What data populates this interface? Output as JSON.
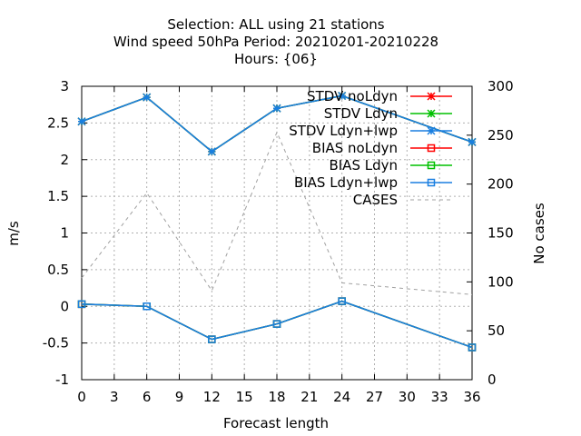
{
  "chart_data": {
    "type": "line",
    "title_lines": [
      "Selection: ALL using    21 stations",
      "Wind speed 50hPa   Period: 20210201-20210228",
      "Hours: {06}"
    ],
    "xlabel": "Forecast length",
    "ylabel": "m/s",
    "y2label": "No cases",
    "x": [
      0,
      6,
      12,
      18,
      24,
      36
    ],
    "xlim": [
      0,
      36
    ],
    "ylim": [
      -1,
      3
    ],
    "y2lim": [
      0,
      300
    ],
    "xticks": [
      0,
      3,
      6,
      9,
      12,
      15,
      18,
      21,
      24,
      27,
      30,
      33,
      36
    ],
    "yticks": [
      -1,
      -0.5,
      0,
      0.5,
      1,
      1.5,
      2,
      2.5,
      3
    ],
    "y2ticks": [
      0,
      50,
      100,
      150,
      200,
      250,
      300
    ],
    "grid": true,
    "legend_position": "top-right",
    "series": [
      {
        "name": "STDV noLdyn",
        "color": "#ff0000",
        "marker": "star",
        "axis": "y1",
        "values": [
          2.52,
          2.85,
          2.11,
          2.7,
          2.87,
          2.24
        ]
      },
      {
        "name": "STDV Ldyn",
        "color": "#00c000",
        "marker": "star",
        "axis": "y1",
        "values": [
          2.52,
          2.85,
          2.11,
          2.7,
          2.87,
          2.24
        ]
      },
      {
        "name": "STDV Ldyn+lwp",
        "color": "#1a7fe0",
        "marker": "star",
        "axis": "y1",
        "values": [
          2.52,
          2.85,
          2.11,
          2.7,
          2.87,
          2.24
        ]
      },
      {
        "name": "BIAS noLdyn",
        "color": "#ff0000",
        "marker": "square",
        "axis": "y1",
        "values": [
          0.03,
          0.0,
          -0.45,
          -0.24,
          0.07,
          -0.56
        ]
      },
      {
        "name": "BIAS Ldyn",
        "color": "#00c000",
        "marker": "square",
        "axis": "y1",
        "values": [
          0.03,
          0.0,
          -0.45,
          -0.24,
          0.07,
          -0.56
        ]
      },
      {
        "name": "BIAS Ldyn+lwp",
        "color": "#1a7fe0",
        "marker": "square",
        "axis": "y1",
        "values": [
          0.03,
          0.0,
          -0.45,
          -0.24,
          0.07,
          -0.56
        ]
      },
      {
        "name": "CASES",
        "color": "#a0a0a0",
        "marker": "none",
        "dashed": true,
        "axis": "y2",
        "values": [
          104,
          191,
          91,
          253,
          99,
          87
        ]
      }
    ]
  }
}
